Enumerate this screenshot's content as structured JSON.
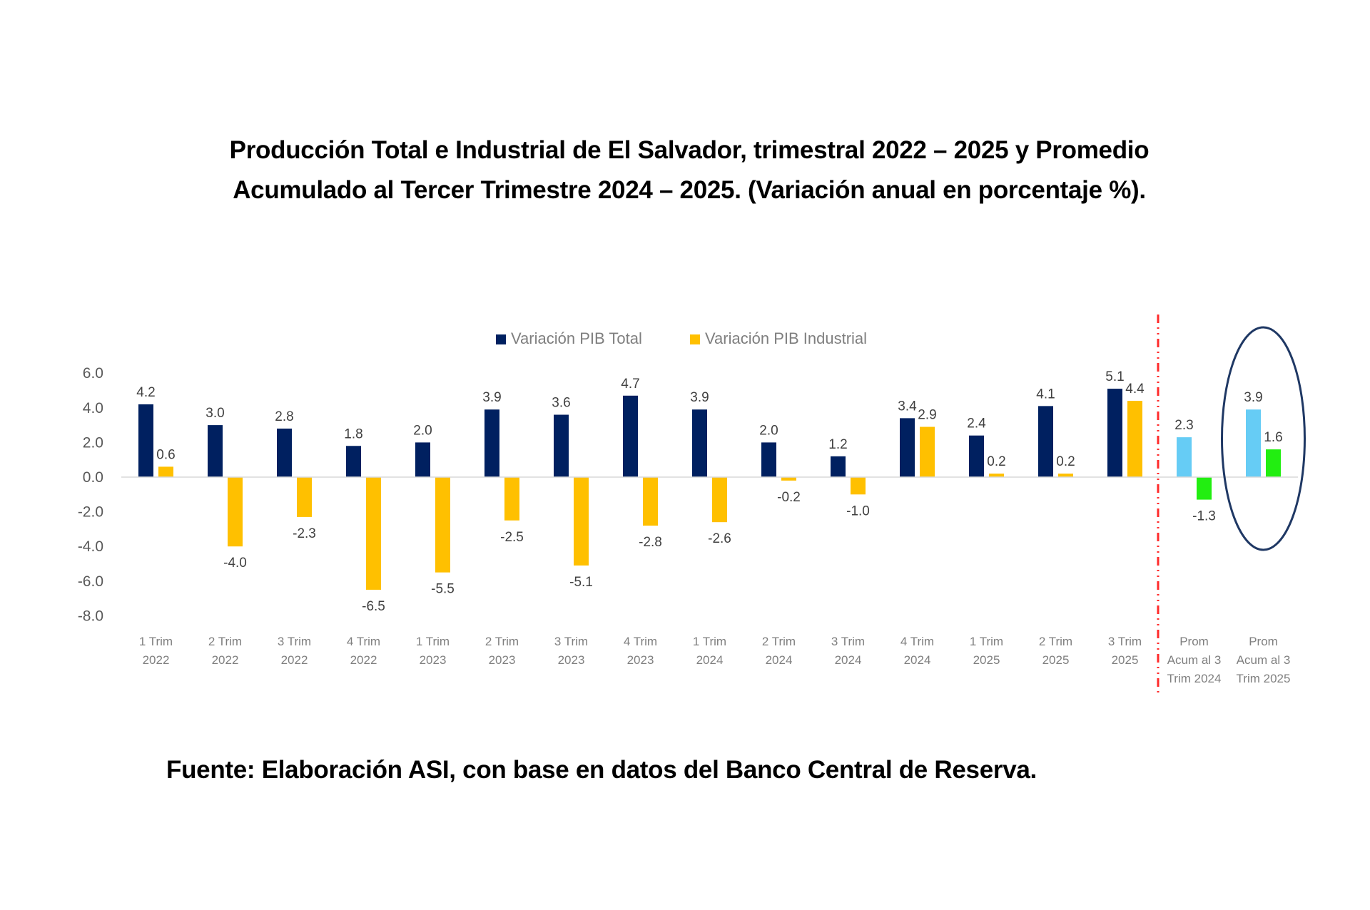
{
  "title": {
    "line1": "Producción Total e Industrial de El Salvador, trimestral 2022 – 2025 y Promedio",
    "line2": "Acumulado al Tercer Trimestre 2024 – 2025. (Variación anual en porcentaje %)."
  },
  "footer": "Fuente: Elaboración ASI, con base en datos del Banco Central de Reserva.",
  "colors": {
    "total": "#002060",
    "industrial": "#FFC000",
    "prom_total": "#66CCF5",
    "prom_industrial": "#22EE11",
    "divider": "#FF2A2A",
    "highlight_ellipse": "#1F3864",
    "axis": "#D9D9D9"
  },
  "chart_data": {
    "type": "bar",
    "title": "Producción Total e Industrial de El Salvador, trimestral 2022 – 2025 y Promedio Acumulado al Tercer Trimestre 2024 – 2025. (Variación anual en porcentaje %).",
    "xlabel": "",
    "ylabel": "",
    "ylim": [
      -8.0,
      6.0
    ],
    "yticks": [
      "6.0",
      "4.0",
      "2.0",
      "0.0",
      "-2.0",
      "-4.0",
      "-6.0",
      "-8.0"
    ],
    "ytick_values": [
      6,
      4,
      2,
      0,
      -2,
      -4,
      -6,
      -8
    ],
    "grid": false,
    "legend_position": "top-center",
    "categories": [
      [
        "1 Trim",
        "2022"
      ],
      [
        "2 Trim",
        "2022"
      ],
      [
        "3 Trim",
        "2022"
      ],
      [
        "4 Trim",
        "2022"
      ],
      [
        "1 Trim",
        "2023"
      ],
      [
        "2 Trim",
        "2023"
      ],
      [
        "3 Trim",
        "2023"
      ],
      [
        "4 Trim",
        "2023"
      ],
      [
        "1 Trim",
        "2024"
      ],
      [
        "2 Trim",
        "2024"
      ],
      [
        "3 Trim",
        "2024"
      ],
      [
        "4 Trim",
        "2024"
      ],
      [
        "1 Trim",
        "2025"
      ],
      [
        "2 Trim",
        "2025"
      ],
      [
        "3 Trim",
        "2025"
      ],
      [
        "Prom",
        "Acum al 3",
        "Trim 2024"
      ],
      [
        "Prom",
        "Acum al 3",
        "Trim 2025"
      ]
    ],
    "series": [
      {
        "name": "Variación PIB Total",
        "values": [
          4.2,
          3.0,
          2.8,
          1.8,
          2.0,
          3.9,
          3.6,
          4.7,
          3.9,
          2.0,
          1.2,
          3.4,
          2.4,
          4.1,
          5.1,
          2.3,
          3.9
        ],
        "labels": [
          "4.2",
          "3.0",
          "2.8",
          "1.8",
          "2.0",
          "3.9",
          "3.6",
          "4.7",
          "3.9",
          "2.0",
          "1.2",
          "3.4",
          "2.4",
          "4.1",
          "5.1",
          "2.3",
          "3.9"
        ]
      },
      {
        "name": "Variación PIB Industrial",
        "values": [
          0.6,
          -4.0,
          -2.3,
          -6.5,
          -5.5,
          -2.5,
          -5.1,
          -2.8,
          -2.6,
          -0.2,
          -1.0,
          2.9,
          0.2,
          0.2,
          4.4,
          -1.3,
          1.6
        ],
        "labels": [
          "0.6",
          "-4.0",
          "-2.3",
          "-6.5",
          "-5.5",
          "-2.5",
          "-5.1",
          "-2.8",
          "-2.6",
          "-0.2",
          "-1.0",
          "2.9",
          "0.2",
          "0.2",
          "4.4",
          "-1.3",
          "1.6"
        ]
      }
    ],
    "legend": [
      "Variación PIB Total",
      "Variación PIB Industrial"
    ],
    "annotations": [
      {
        "type": "vertical-dash-dot-line",
        "between_categories": [
          14,
          15
        ],
        "description": "separates quarterly values from accumulated averages"
      },
      {
        "type": "ellipse-highlight",
        "category_index": 16
      }
    ],
    "highlight_categories": [
      15,
      16
    ]
  }
}
